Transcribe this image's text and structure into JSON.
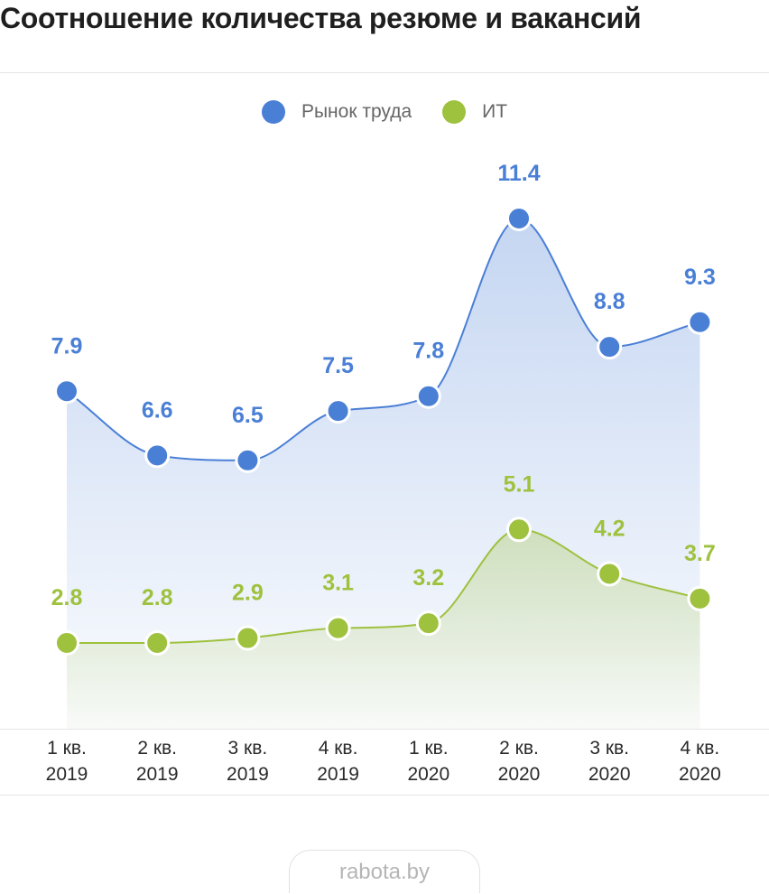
{
  "title": "Соотношение количества резюме и вакансий",
  "watermark": "rabota.by",
  "legend": [
    {
      "label": "Рынок труда",
      "color": "#4a7fd6"
    },
    {
      "label": "ИТ",
      "color": "#9ec13e"
    }
  ],
  "chart_data": {
    "type": "line",
    "title": "Соотношение количества резюме и вакансий",
    "categories": [
      [
        "1 кв.",
        "2019"
      ],
      [
        "2 кв.",
        "2019"
      ],
      [
        "3 кв.",
        "2019"
      ],
      [
        "4 кв.",
        "2019"
      ],
      [
        "1 кв.",
        "2020"
      ],
      [
        "2 кв.",
        "2020"
      ],
      [
        "3 кв.",
        "2020"
      ],
      [
        "4 кв.",
        "2020"
      ]
    ],
    "series": [
      {
        "name": "Рынок труда",
        "color": "#4a7fd6",
        "values": [
          7.9,
          6.6,
          6.5,
          7.5,
          7.8,
          11.4,
          8.8,
          9.3
        ]
      },
      {
        "name": "ИТ",
        "color": "#9ec13e",
        "values": [
          2.8,
          2.8,
          2.9,
          3.1,
          3.2,
          5.1,
          4.2,
          3.7
        ]
      }
    ],
    "data_labels": true,
    "smooth": true,
    "area_fill": true,
    "grid": false,
    "legend_position": "top-center"
  }
}
